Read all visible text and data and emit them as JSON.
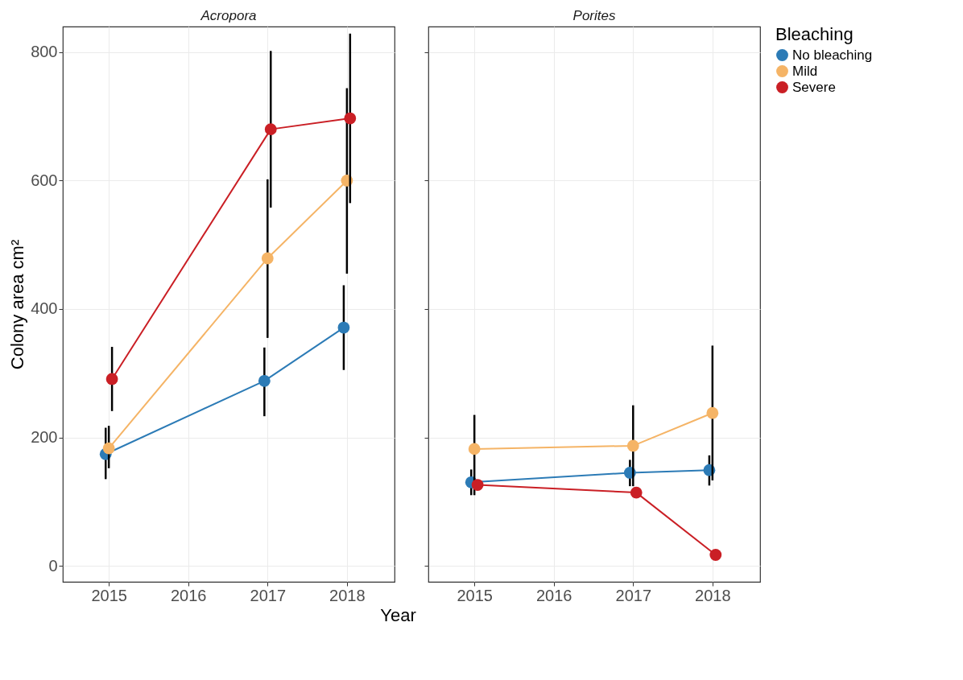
{
  "chart_data": [
    {
      "type": "line",
      "title": "Acropora",
      "xlabel": "Year",
      "ylabel": "Colony area cm²",
      "xlim": [
        2014.42,
        2018.6
      ],
      "xticks": [
        2015,
        2016,
        2017,
        2018
      ],
      "ylim": [
        -25,
        840
      ],
      "yticks": [
        0,
        200,
        400,
        600,
        800
      ],
      "grid": true,
      "marker": "circle",
      "line_style": "solid",
      "legend": "right",
      "series": [
        {
          "name": "No bleaching",
          "color": "#2c7bb6",
          "x": [
            2014.96,
            2016.96,
            2017.96
          ],
          "values": [
            174,
            288,
            371
          ],
          "errors": [
            [
              135,
              215
            ],
            [
              233,
              340
            ],
            [
              305,
              437
            ]
          ]
        },
        {
          "name": "Mild",
          "color": "#f5b466",
          "x": [
            2015,
            2017,
            2018
          ],
          "values": [
            183,
            479,
            600
          ],
          "errors": [
            [
              152,
              218
            ],
            [
              355,
              602
            ],
            [
              455,
              744
            ]
          ]
        },
        {
          "name": "Severe",
          "color": "#ca1f25",
          "x": [
            2015.04,
            2017.04,
            2018.04
          ],
          "values": [
            291,
            680,
            697
          ],
          "errors": [
            [
              241,
              341
            ],
            [
              558,
              802
            ],
            [
              565,
              829
            ]
          ]
        }
      ]
    },
    {
      "type": "line",
      "title": "Porites",
      "xlim": [
        2014.42,
        2018.6
      ],
      "xticks": [
        2015,
        2016,
        2017,
        2018
      ],
      "ylim": [
        -25,
        840
      ],
      "yticks": [
        0,
        200,
        400,
        600,
        800
      ],
      "tick_labels": "x",
      "grid": true,
      "marker": "circle",
      "line_style": "solid",
      "legend": "right",
      "legend_title": "Bleaching",
      "series": [
        {
          "name": "No bleaching",
          "color": "#2c7bb6",
          "x": [
            2014.96,
            2016.96,
            2017.96
          ],
          "values": [
            130,
            145,
            149
          ],
          "errors": [
            [
              110,
              150
            ],
            [
              124,
              165
            ],
            [
              125,
              172
            ]
          ]
        },
        {
          "name": "Mild",
          "color": "#f5b466",
          "x": [
            2015,
            2017,
            2018
          ],
          "values": [
            182,
            187,
            238
          ],
          "errors": [
            [
              110,
              235
            ],
            [
              124,
              250
            ],
            [
              133,
              343
            ]
          ]
        },
        {
          "name": "Severe",
          "color": "#ca1f25",
          "x": [
            2015.04,
            2017.04,
            2018.04
          ],
          "values": [
            126,
            114,
            17
          ],
          "errors": [
            null,
            null,
            null
          ]
        }
      ]
    }
  ]
}
